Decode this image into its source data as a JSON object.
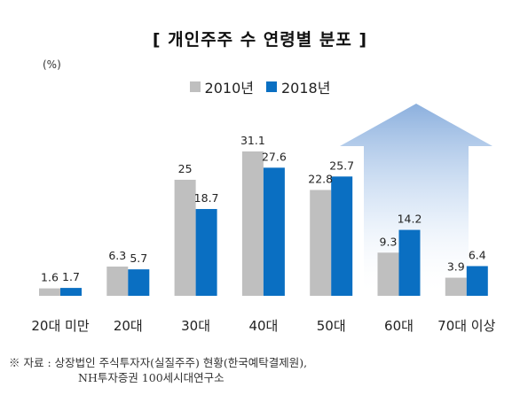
{
  "chart_data": {
    "type": "bar",
    "title": "[ 개인주주 수 연령별 분포 ]",
    "unit": "(%)",
    "categories": [
      "20대 미만",
      "20대",
      "30대",
      "40대",
      "50대",
      "60대",
      "70대 이상"
    ],
    "series": [
      {
        "name": "2010년",
        "color": "#bfbfbf",
        "values": [
          1.6,
          6.3,
          25,
          31.1,
          22.8,
          9.3,
          3.9
        ]
      },
      {
        "name": "2018년",
        "color": "#0a6fc2",
        "values": [
          1.7,
          5.7,
          18.7,
          27.6,
          25.7,
          14.2,
          6.4
        ]
      }
    ],
    "ylim": [
      0,
      31.1
    ],
    "grid": false,
    "legend_position": "top-center",
    "annotation_arrow": "up-arrow-gradient"
  },
  "source": {
    "line1": "※ 자료 : 상장법인 주식투자자(실질주주) 현황(한국예탁결제원),",
    "line2": "NH투자증권 100세시대연구소"
  }
}
